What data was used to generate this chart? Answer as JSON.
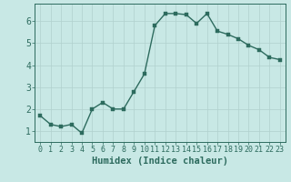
{
  "x": [
    0,
    1,
    2,
    3,
    4,
    5,
    6,
    7,
    8,
    9,
    10,
    11,
    12,
    13,
    14,
    15,
    16,
    17,
    18,
    19,
    20,
    21,
    22,
    23
  ],
  "y": [
    1.7,
    1.3,
    1.2,
    1.3,
    0.9,
    2.0,
    2.3,
    2.0,
    2.0,
    2.8,
    3.6,
    5.8,
    6.35,
    6.35,
    6.3,
    5.9,
    6.35,
    5.55,
    5.4,
    5.2,
    4.9,
    4.7,
    4.35,
    4.25
  ],
  "line_color": "#2d6b5e",
  "marker_color": "#2d6b5e",
  "bg_color": "#c8e8e5",
  "grid_color": "#b0d0ce",
  "axis_color": "#2d6b5e",
  "tick_color": "#2d6b5e",
  "xlabel": "Humidex (Indice chaleur)",
  "xlabel_color": "#2d6b5e",
  "ylim": [
    0.5,
    6.8
  ],
  "xlim": [
    -0.5,
    23.5
  ],
  "yticks": [
    1,
    2,
    3,
    4,
    5,
    6
  ],
  "xticks": [
    0,
    1,
    2,
    3,
    4,
    5,
    6,
    7,
    8,
    9,
    10,
    11,
    12,
    13,
    14,
    15,
    16,
    17,
    18,
    19,
    20,
    21,
    22,
    23
  ],
  "xtick_labels": [
    "0",
    "1",
    "2",
    "3",
    "4",
    "5",
    "6",
    "7",
    "8",
    "9",
    "10",
    "11",
    "12",
    "13",
    "14",
    "15",
    "16",
    "17",
    "18",
    "19",
    "20",
    "21",
    "22",
    "23"
  ],
  "font_family": "monospace",
  "fontsize_tick": 6,
  "fontsize_xlabel": 7.5,
  "linewidth": 1.0,
  "markersize": 2.5
}
